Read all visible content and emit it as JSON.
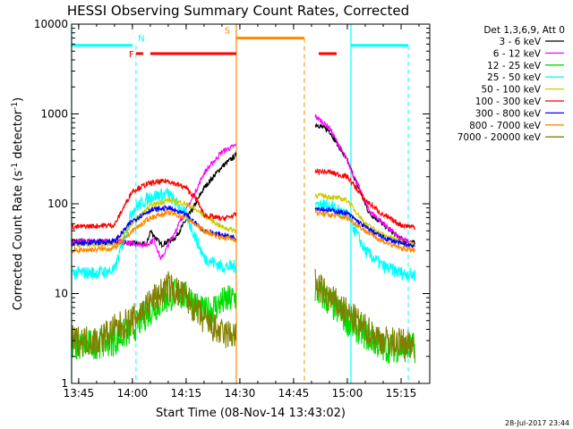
{
  "chart_data": {
    "type": "line",
    "title": "HESSI Observing Summary Count Rates, Corrected",
    "xlabel": "Start Time (08-Nov-14 13:43:02)",
    "ylabel": "Corrected Count Rate (s",
    "ylabel_sup1": "-1",
    "ylabel_mid": " detector",
    "ylabel_sup2": "-1",
    "ylabel_end": ")",
    "yscale": "log",
    "ylim": [
      1,
      10000
    ],
    "xlim": [
      "13:43:02",
      "15:23:00"
    ],
    "x_ticks": [
      "13:45",
      "14:00",
      "14:15",
      "14:30",
      "14:45",
      "15:00",
      "15:15"
    ],
    "y_ticks": [
      "1",
      "10",
      "100",
      "1000",
      "10000"
    ],
    "legend_title": "Det 1,3,6,9, Att 0",
    "legend_position": "right",
    "series": [
      {
        "name": "3 - 6 keV",
        "color": "#000000",
        "x": [
          "13:43",
          "13:55",
          "14:01",
          "14:04",
          "14:05",
          "14:08",
          "14:12",
          "14:17",
          "14:20",
          "14:25",
          "14:29",
          "14:51",
          "14:55",
          "15:00",
          "15:06",
          "15:15",
          "15:19"
        ],
        "y": [
          38,
          38,
          36,
          35,
          50,
          35,
          42,
          90,
          150,
          260,
          350,
          780,
          650,
          300,
          80,
          40,
          36
        ]
      },
      {
        "name": "6 - 12 keV",
        "color": "#ff00ff",
        "x": [
          "13:43",
          "13:55",
          "14:01",
          "14:04",
          "14:06",
          "14:08",
          "14:12",
          "14:17",
          "14:20",
          "14:25",
          "14:29",
          "14:51",
          "14:55",
          "15:00",
          "15:06",
          "15:15",
          "15:19"
        ],
        "y": [
          38,
          38,
          36,
          35,
          40,
          24,
          50,
          120,
          220,
          380,
          450,
          950,
          700,
          300,
          85,
          40,
          36
        ]
      },
      {
        "name": "12 - 25 keV",
        "color": "#00dd00",
        "x": [
          "13:43",
          "13:55",
          "14:00",
          "14:04",
          "14:08",
          "14:12",
          "14:16",
          "14:20",
          "14:25",
          "14:29",
          "14:51",
          "14:55",
          "15:00",
          "15:05",
          "15:10",
          "15:15",
          "15:19"
        ],
        "y": [
          2.5,
          3,
          4,
          6,
          8,
          10,
          9,
          6,
          8,
          9,
          11,
          8,
          5,
          3.5,
          2.5,
          2.5,
          2.5
        ]
      },
      {
        "name": "25 - 50 keV",
        "color": "#00ffff",
        "x": [
          "13:43",
          "13:50",
          "13:55",
          "14:00",
          "14:05",
          "14:10",
          "14:15",
          "14:20",
          "14:25",
          "14:29",
          "14:51",
          "14:55",
          "15:00",
          "15:05",
          "15:10",
          "15:15",
          "15:19"
        ],
        "y": [
          17,
          17,
          18,
          85,
          120,
          130,
          75,
          25,
          20,
          20,
          100,
          95,
          75,
          30,
          20,
          17,
          16
        ]
      },
      {
        "name": "50 - 100 keV",
        "color": "#cccc00",
        "x": [
          "13:43",
          "13:55",
          "14:00",
          "14:05",
          "14:10",
          "14:15",
          "14:20",
          "14:25",
          "14:29",
          "14:51",
          "14:55",
          "15:00",
          "15:05",
          "15:10",
          "15:15",
          "15:19"
        ],
        "y": [
          35,
          36,
          60,
          95,
          110,
          100,
          75,
          55,
          50,
          125,
          120,
          110,
          60,
          45,
          38,
          35
        ]
      },
      {
        "name": "100 - 300 keV",
        "color": "#ff0000",
        "x": [
          "13:43",
          "13:55",
          "14:00",
          "14:05",
          "14:10",
          "14:15",
          "14:18",
          "14:20",
          "14:25",
          "14:29",
          "14:51",
          "14:55",
          "15:00",
          "15:05",
          "15:10",
          "15:15",
          "15:19"
        ],
        "y": [
          55,
          58,
          140,
          170,
          180,
          150,
          110,
          75,
          68,
          75,
          230,
          225,
          200,
          110,
          75,
          58,
          55
        ]
      },
      {
        "name": "300 - 800 keV",
        "color": "#0000ff",
        "x": [
          "13:43",
          "13:55",
          "14:00",
          "14:05",
          "14:10",
          "14:15",
          "14:20",
          "14:25",
          "14:29",
          "14:51",
          "14:55",
          "15:00",
          "15:05",
          "15:10",
          "15:15",
          "15:19"
        ],
        "y": [
          36,
          38,
          65,
          85,
          90,
          75,
          50,
          45,
          42,
          90,
          85,
          78,
          55,
          42,
          36,
          34
        ]
      },
      {
        "name": "800 - 7000 keV",
        "color": "#ff8800",
        "x": [
          "13:43",
          "13:55",
          "14:00",
          "14:05",
          "14:10",
          "14:15",
          "14:20",
          "14:25",
          "14:29",
          "14:51",
          "14:55",
          "15:00",
          "15:05",
          "15:10",
          "15:15",
          "15:19"
        ],
        "y": [
          30,
          32,
          50,
          70,
          80,
          70,
          50,
          42,
          40,
          80,
          75,
          70,
          50,
          38,
          32,
          30
        ]
      },
      {
        "name": "7000 - 20000 keV",
        "color": "#808000",
        "x": [
          "13:43",
          "13:50",
          "13:55",
          "14:00",
          "14:05",
          "14:10",
          "14:15",
          "14:20",
          "14:25",
          "14:29",
          "14:51",
          "14:55",
          "15:00",
          "15:05",
          "15:10",
          "15:15",
          "15:19"
        ],
        "y": [
          3,
          3,
          4,
          5,
          8,
          12,
          9,
          5,
          3.5,
          3.5,
          13,
          9,
          6,
          4,
          3,
          2.8,
          2.8
        ]
      }
    ],
    "annotations": [
      {
        "label": "N",
        "color": "#00ffff",
        "segments": [
          [
            "13:43",
            "14:00"
          ],
          [
            "15:01",
            "15:17"
          ]
        ],
        "level": 5800,
        "markers": [
          "14:01",
          "15:17"
        ]
      },
      {
        "label": "F",
        "color": "#ff0000",
        "segments": [
          [
            "14:01",
            "14:03"
          ],
          [
            "14:05",
            "14:29"
          ],
          [
            "14:52",
            "14:57"
          ]
        ],
        "level": 4700
      },
      {
        "label": "S",
        "color": "#ff8800",
        "segments": [
          [
            "14:29",
            "14:48"
          ]
        ],
        "level": 7000,
        "markers": [
          "14:48"
        ]
      }
    ],
    "boundaries": [
      "13:43",
      "14:29",
      "15:01"
    ],
    "grid": false
  },
  "timestamp": "28-Jul-2017 23:44"
}
